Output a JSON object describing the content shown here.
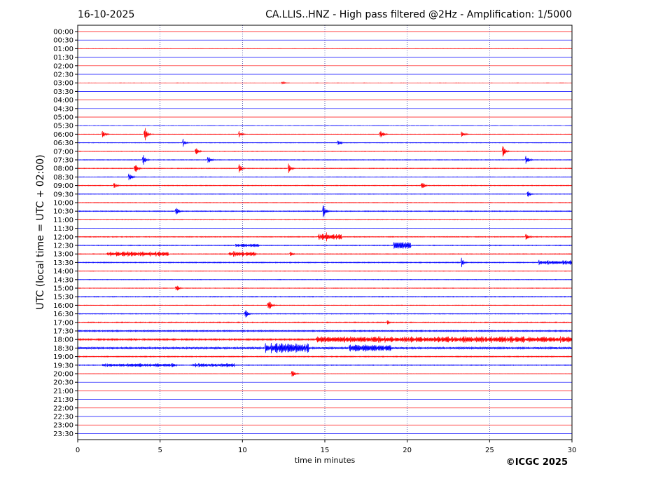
{
  "chart_data": {
    "type": "line",
    "date": "16-10-2025",
    "title": "CA.LLIS..HNZ - High pass filtered @2Hz - Amplification: 1/5000",
    "xlabel": "time in minutes",
    "ylabel": "UTC (local time = UTC + 02:00)",
    "copyright": "©ICGC 2025",
    "xlim": [
      0,
      30
    ],
    "x_ticks": [
      "0",
      "5",
      "10",
      "15",
      "20",
      "25",
      "30"
    ],
    "x_tick_values": [
      0,
      5,
      10,
      15,
      20,
      25,
      30
    ],
    "row_labels": [
      "00:00",
      "00:30",
      "01:00",
      "01:30",
      "02:00",
      "02:30",
      "03:00",
      "03:30",
      "04:00",
      "04:30",
      "05:00",
      "05:30",
      "06:00",
      "06:30",
      "07:00",
      "07:30",
      "08:00",
      "08:30",
      "09:00",
      "09:30",
      "10:00",
      "10:30",
      "11:00",
      "11:30",
      "12:00",
      "12:30",
      "13:00",
      "13:30",
      "14:00",
      "14:30",
      "15:00",
      "15:30",
      "16:00",
      "16:30",
      "17:00",
      "17:30",
      "18:00",
      "18:30",
      "19:00",
      "19:30",
      "20:00",
      "20:30",
      "21:00",
      "21:30",
      "22:00",
      "22:30",
      "23:00",
      "23:30"
    ],
    "row_colors": [
      "#ff0000",
      "#0000ff"
    ],
    "noise_levels": [
      0.05,
      0.05,
      0.06,
      0.05,
      0.05,
      0.05,
      0.06,
      0.05,
      0.05,
      0.05,
      0.05,
      0.1,
      0.25,
      0.35,
      0.3,
      0.35,
      0.45,
      0.3,
      0.45,
      0.35,
      0.35,
      0.5,
      0.3,
      0.15,
      0.5,
      0.5,
      0.4,
      0.6,
      0.3,
      0.3,
      0.3,
      0.5,
      0.3,
      0.45,
      0.6,
      0.9,
      1.1,
      1.3,
      0.6,
      0.5,
      0.1,
      0.05,
      0.05,
      0.05,
      0.05,
      0.05,
      0.05,
      0.05
    ],
    "events": [
      {
        "row": 6,
        "minute": 12.4,
        "amplitude": 2
      },
      {
        "row": 12,
        "minute": 1.5,
        "amplitude": 7
      },
      {
        "row": 12,
        "minute": 4.1,
        "amplitude": 9
      },
      {
        "row": 12,
        "minute": 9.8,
        "amplitude": 5
      },
      {
        "row": 12,
        "minute": 18.4,
        "amplitude": 6
      },
      {
        "row": 12,
        "minute": 23.3,
        "amplitude": 6
      },
      {
        "row": 13,
        "minute": 6.4,
        "amplitude": 6
      },
      {
        "row": 13,
        "minute": 15.8,
        "amplitude": 5
      },
      {
        "row": 14,
        "minute": 7.2,
        "amplitude": 5
      },
      {
        "row": 14,
        "minute": 25.8,
        "amplitude": 9
      },
      {
        "row": 15,
        "minute": 4.0,
        "amplitude": 7
      },
      {
        "row": 15,
        "minute": 7.9,
        "amplitude": 8
      },
      {
        "row": 15,
        "minute": 27.2,
        "amplitude": 9
      },
      {
        "row": 16,
        "minute": 3.5,
        "amplitude": 8
      },
      {
        "row": 16,
        "minute": 9.8,
        "amplitude": 7
      },
      {
        "row": 16,
        "minute": 12.8,
        "amplitude": 8
      },
      {
        "row": 17,
        "minute": 3.1,
        "amplitude": 8
      },
      {
        "row": 18,
        "minute": 2.2,
        "amplitude": 6
      },
      {
        "row": 18,
        "minute": 20.9,
        "amplitude": 6
      },
      {
        "row": 19,
        "minute": 27.3,
        "amplitude": 6
      },
      {
        "row": 21,
        "minute": 6.0,
        "amplitude": 7
      },
      {
        "row": 21,
        "minute": 14.9,
        "amplitude": 11
      },
      {
        "row": 24,
        "minute": 15.1,
        "amplitude": 7
      },
      {
        "row": 24,
        "minute": 27.2,
        "amplitude": 7
      },
      {
        "row": 25,
        "minute": 19.6,
        "amplitude": 8
      },
      {
        "row": 26,
        "minute": 12.9,
        "amplitude": 5
      },
      {
        "row": 27,
        "minute": 23.3,
        "amplitude": 8
      },
      {
        "row": 30,
        "minute": 6.0,
        "amplitude": 5
      },
      {
        "row": 32,
        "minute": 11.6,
        "amplitude": 8
      },
      {
        "row": 33,
        "minute": 10.2,
        "amplitude": 7
      },
      {
        "row": 34,
        "minute": 18.8,
        "amplitude": 5
      },
      {
        "row": 40,
        "minute": 13.0,
        "amplitude": 7
      }
    ],
    "bursts": [
      {
        "row": 24,
        "start": 14.6,
        "end": 16.0,
        "amplitude": 5
      },
      {
        "row": 25,
        "start": 9.6,
        "end": 11.0,
        "amplitude": 3
      },
      {
        "row": 25,
        "start": 19.2,
        "end": 20.2,
        "amplitude": 6
      },
      {
        "row": 26,
        "start": 1.8,
        "end": 5.5,
        "amplitude": 4
      },
      {
        "row": 26,
        "start": 9.2,
        "end": 10.8,
        "amplitude": 4
      },
      {
        "row": 27,
        "start": 28.0,
        "end": 30.0,
        "amplitude": 4
      },
      {
        "row": 36,
        "start": 14.5,
        "end": 30.0,
        "amplitude": 5
      },
      {
        "row": 37,
        "start": 11.4,
        "end": 14.0,
        "amplitude": 8
      },
      {
        "row": 37,
        "start": 16.5,
        "end": 19.0,
        "amplitude": 6
      },
      {
        "row": 39,
        "start": 1.5,
        "end": 6.0,
        "amplitude": 3
      },
      {
        "row": 39,
        "start": 7.0,
        "end": 9.5,
        "amplitude": 3
      }
    ]
  }
}
